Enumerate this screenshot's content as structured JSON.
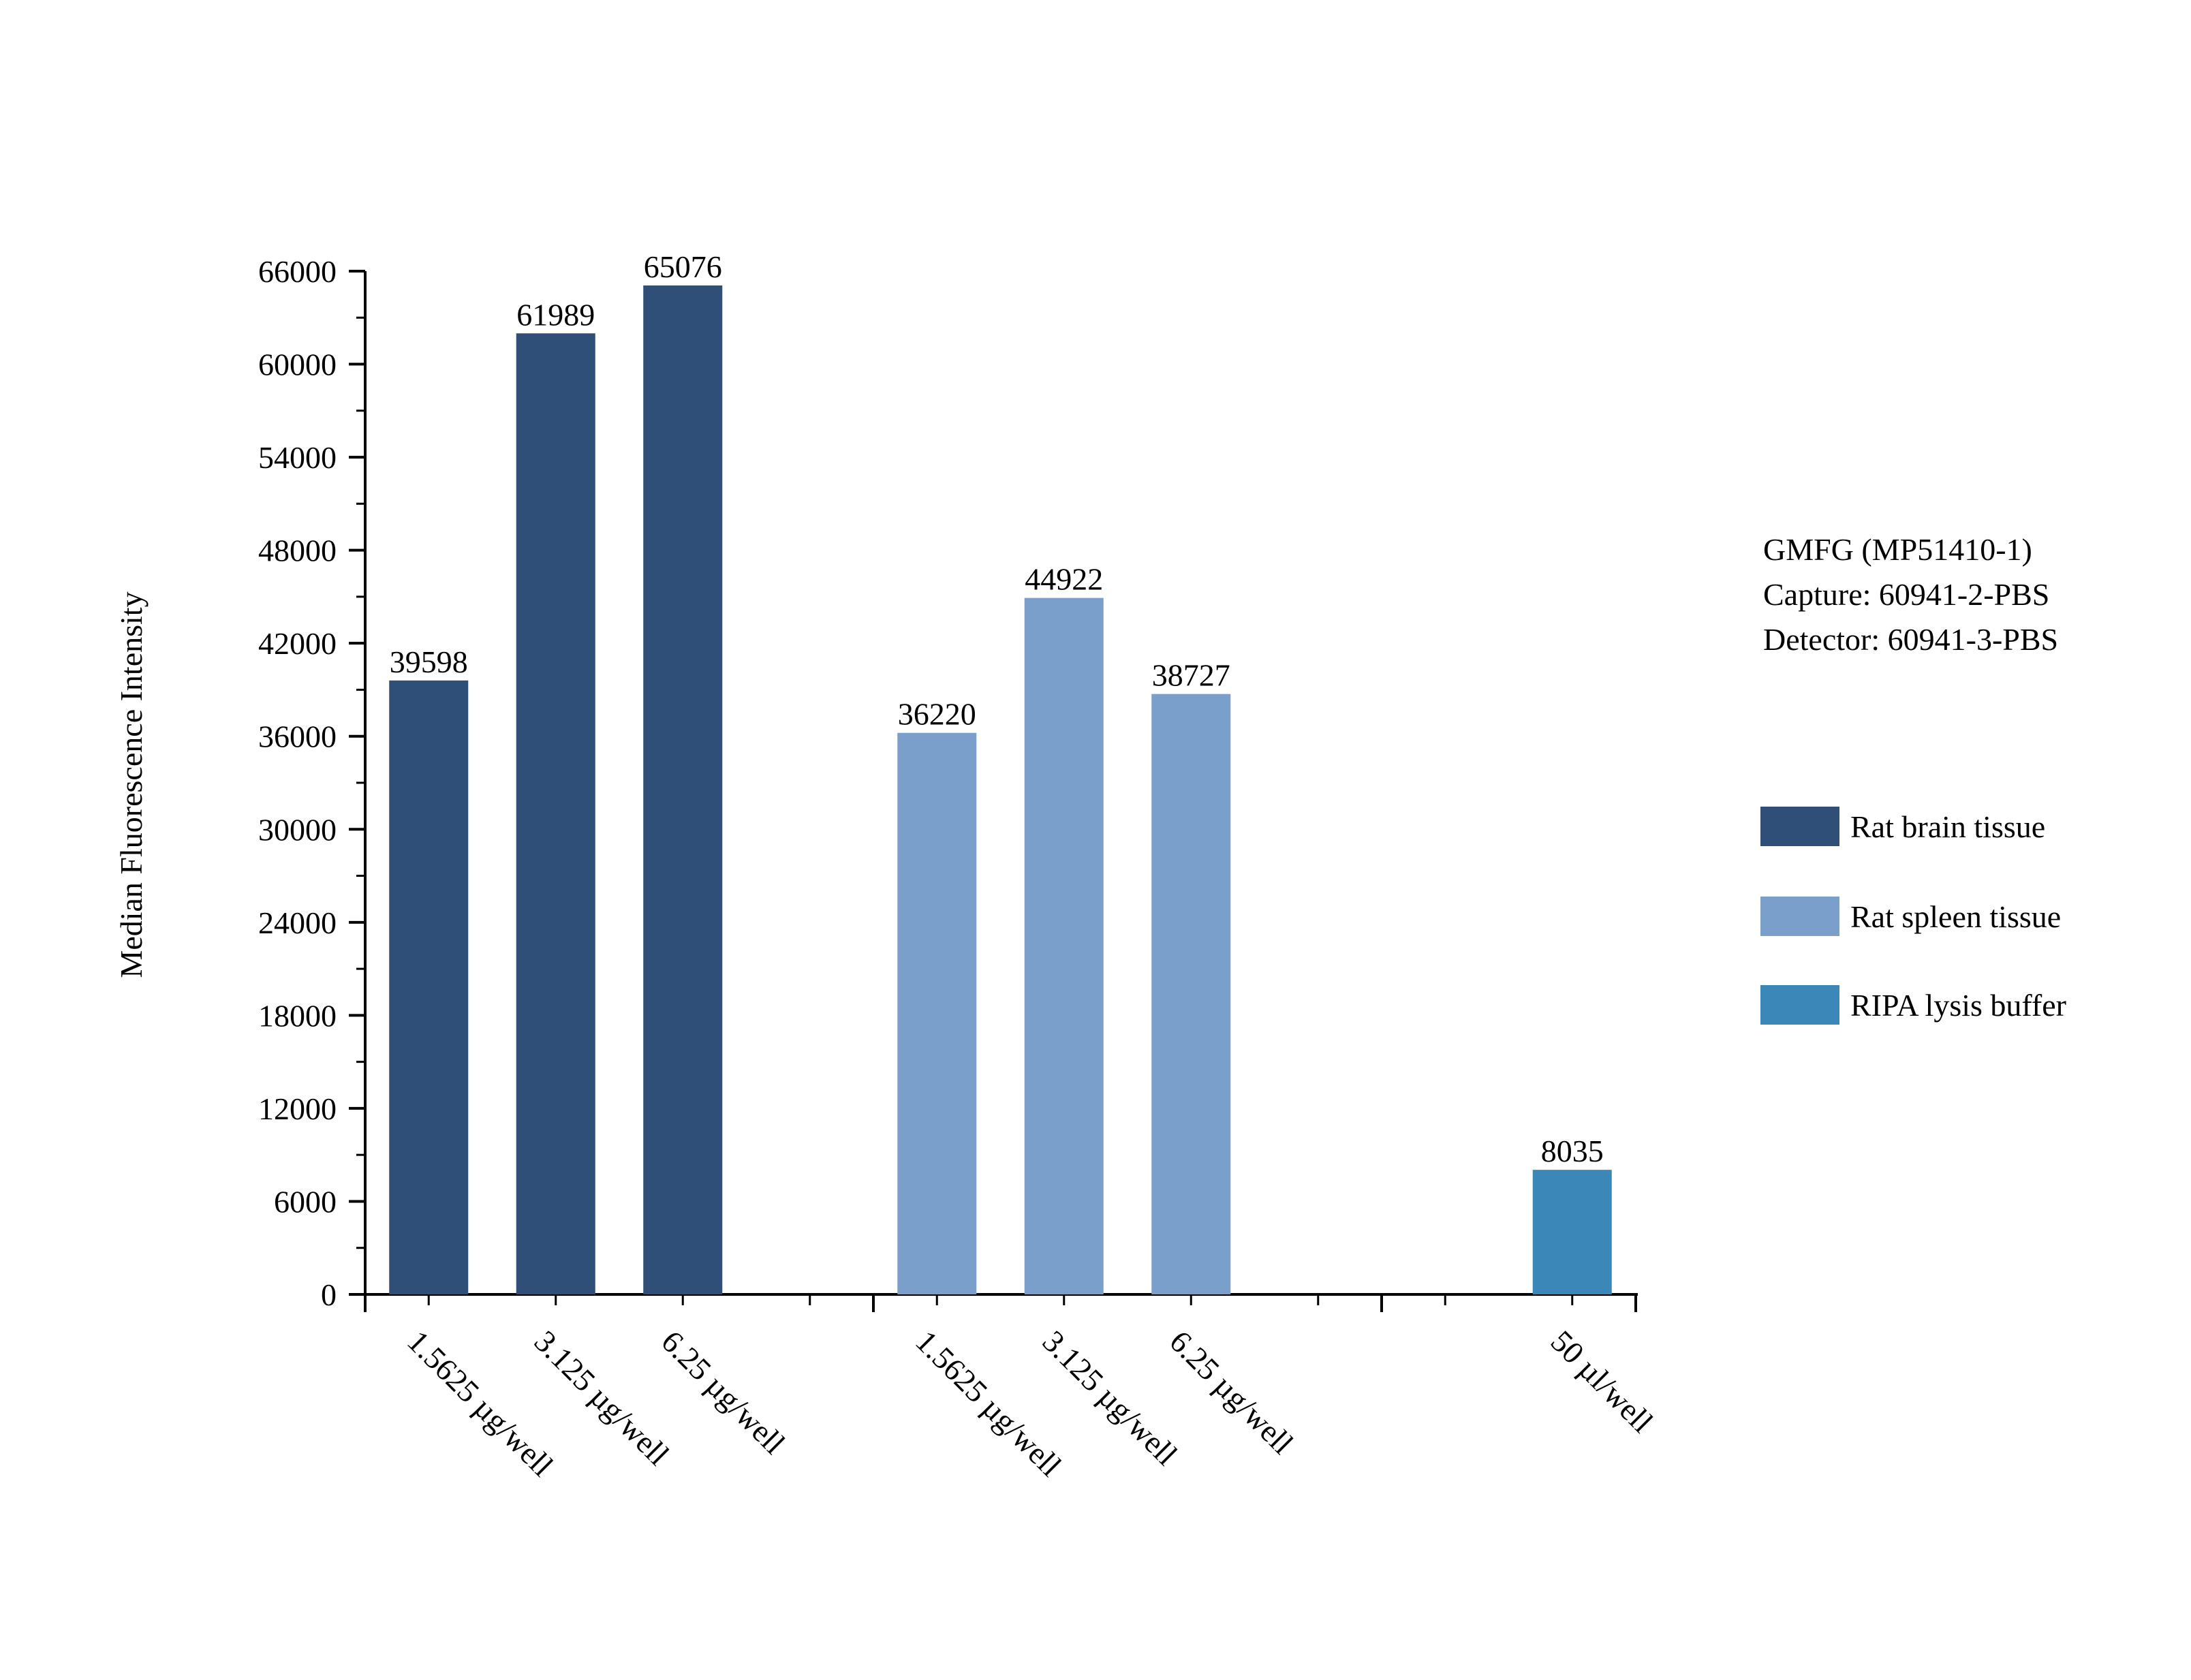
{
  "chart_data": {
    "type": "bar",
    "title": "",
    "xlabel": "",
    "ylabel": "Median Fluorescence Intensity",
    "ylim": [
      0,
      66000
    ],
    "yticks": [
      0,
      6000,
      12000,
      18000,
      24000,
      30000,
      36000,
      42000,
      48000,
      54000,
      60000,
      66000
    ],
    "grid": false,
    "legend_position": "right",
    "info_lines": [
      "GMFG (MP51410-1)",
      "Capture: 60941-2-PBS",
      "Detector: 60941-3-PBS"
    ],
    "series": [
      {
        "name": "Rat brain tissue",
        "color": "#2f4f78",
        "bars": [
          {
            "category": "1.5625 µg/well",
            "value": 39598,
            "label": "39598"
          },
          {
            "category": "3.125 µg/well",
            "value": 61989,
            "label": "61989"
          },
          {
            "category": "6.25 µg/well",
            "value": 65076,
            "label": "65076"
          }
        ]
      },
      {
        "name": "Rat spleen tissue",
        "color": "#7b9fcb",
        "bars": [
          {
            "category": "1.5625 µg/well",
            "value": 36220,
            "label": "36220"
          },
          {
            "category": "3.125 µg/well",
            "value": 44922,
            "label": "44922"
          },
          {
            "category": "6.25 µg/well",
            "value": 38727,
            "label": "38727"
          }
        ]
      },
      {
        "name": "RIPA lysis buffer",
        "color": "#3a87b8",
        "bars": [
          {
            "category": "50 µl/well",
            "value": 8035,
            "label": "8035"
          }
        ]
      }
    ]
  }
}
